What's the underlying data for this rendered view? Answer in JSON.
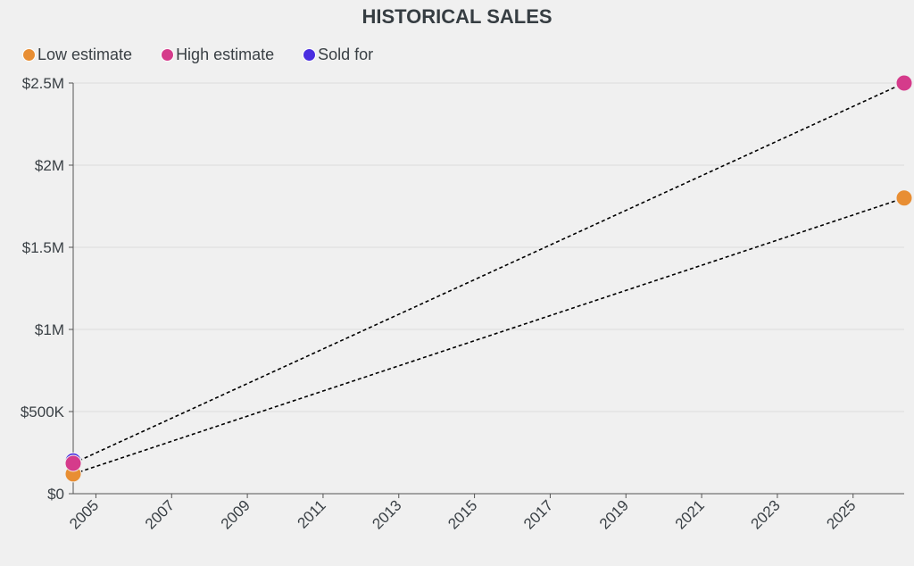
{
  "chart_data": {
    "type": "line",
    "title": "HISTORICAL SALES",
    "xlabel": "",
    "ylabel": "",
    "xlim": [
      2004.4,
      2026.35
    ],
    "ylim": [
      0,
      2500000
    ],
    "grid": true,
    "legend_position": "top-left",
    "x_ticks": [
      "2005",
      "2007",
      "2009",
      "2011",
      "2013",
      "2015",
      "2017",
      "2019",
      "2021",
      "2023",
      "2025"
    ],
    "y_ticks": [
      {
        "value": 0,
        "label": "$0"
      },
      {
        "value": 500000,
        "label": "$500K"
      },
      {
        "value": 1000000,
        "label": "$1M"
      },
      {
        "value": 1500000,
        "label": "$1.5M"
      },
      {
        "value": 2000000,
        "label": "$2M"
      },
      {
        "value": 2500000,
        "label": "$2.5M"
      }
    ],
    "series": [
      {
        "name": "Low estimate",
        "color": "#e88e33",
        "x": [
          2004.4,
          2026.35
        ],
        "values": [
          120000,
          1800000
        ],
        "dashed_line": true
      },
      {
        "name": "Sold for",
        "color": "#4a2ee0",
        "x": [
          2004.4
        ],
        "values": [
          200000
        ],
        "dashed_line": false
      },
      {
        "name": "High estimate",
        "color": "#d53b8b",
        "x": [
          2004.4,
          2026.35
        ],
        "values": [
          185000,
          2500000
        ],
        "dashed_line": true
      }
    ],
    "legend_order": [
      0,
      2,
      1
    ]
  }
}
